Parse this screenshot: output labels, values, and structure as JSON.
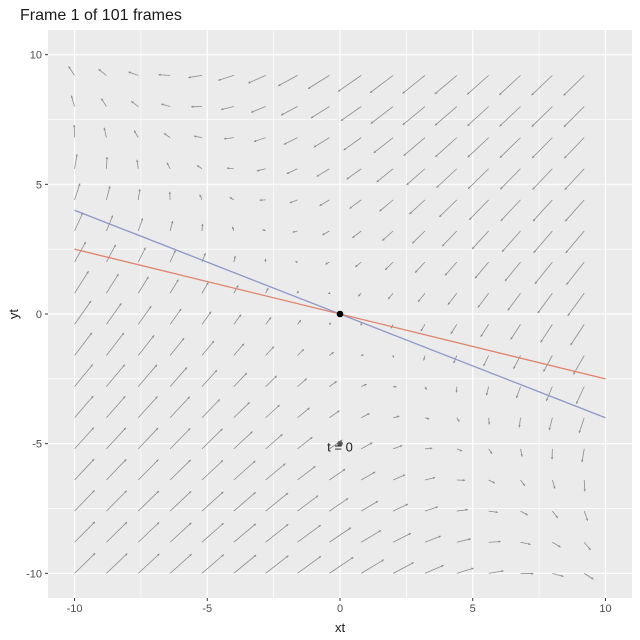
{
  "chart_data": {
    "type": "line",
    "title": "Frame 1 of 101 frames",
    "xlabel": "xt",
    "ylabel": "yt",
    "xlim": [
      -11.0,
      11.0
    ],
    "ylim": [
      -10.95,
      10.95
    ],
    "x_ticks": [
      -10,
      -5,
      0,
      5,
      10
    ],
    "y_ticks": [
      -10,
      -5,
      0,
      5,
      10
    ],
    "x_tick_labels": [
      "-10",
      "-5",
      "0",
      "5",
      "10"
    ],
    "y_tick_labels": [
      "-10",
      "-5",
      "0",
      "5",
      "10"
    ],
    "grid": true,
    "colors": {
      "panel": "#ebebeb",
      "grid": "#ffffff",
      "vector": "#8c8c8c",
      "line_blue": "#8e96c8",
      "line_red": "#e0826c",
      "point": "#000000"
    },
    "series": [
      {
        "color": "#8e96c8",
        "x": [
          -10,
          10
        ],
        "y": [
          4.0,
          -4.0
        ]
      },
      {
        "color": "#e0826c",
        "x": [
          -10,
          10
        ],
        "y": [
          2.5,
          -2.5
        ]
      }
    ],
    "vector_field": {
      "x_start": -10,
      "x_step": 1.2,
      "x_count": 17,
      "y_start": -10,
      "y_step": 1.2,
      "y_count": 17,
      "matrix": [
        [
          -0.5,
          -0.75
        ],
        [
          -0.75,
          -0.5
        ]
      ],
      "scale": 0.12,
      "max_length": 1.1
    },
    "points": [
      {
        "x": 0,
        "y": 0,
        "color": "#000000"
      },
      {
        "x": 0,
        "y": -5,
        "color": "#595959"
      }
    ],
    "annotations": [
      {
        "text": "t = 0",
        "x": 0,
        "y": -5.3
      }
    ]
  }
}
